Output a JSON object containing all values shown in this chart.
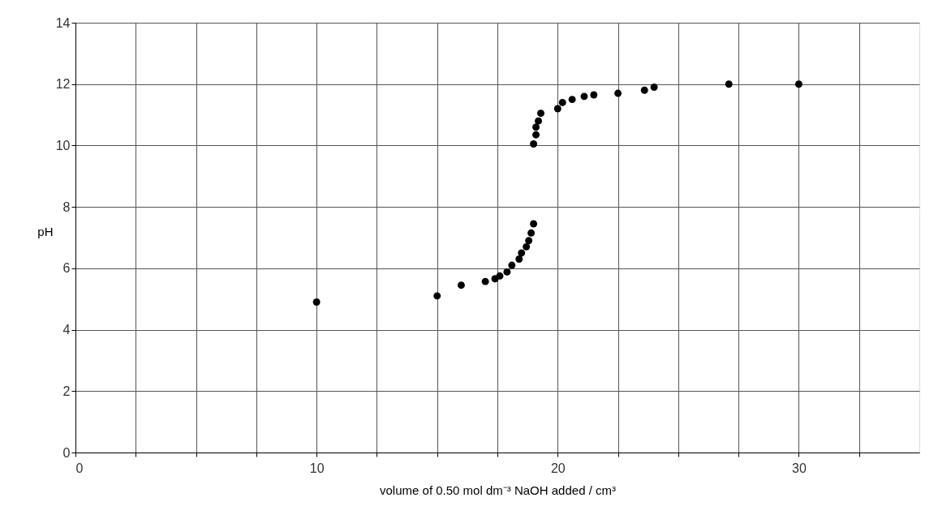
{
  "chart_data": {
    "type": "scatter",
    "xlabel": "volume of 0.50 mol dm⁻³ NaOH added / cm³",
    "ylabel": "pH",
    "x": [
      10,
      15,
      16,
      17.0,
      17.4,
      17.6,
      17.9,
      18.1,
      18.4,
      18.5,
      18.7,
      18.8,
      18.9,
      19.0,
      19.0,
      19.1,
      19.1,
      19.2,
      19.3,
      20.0,
      20.2,
      20.6,
      21.1,
      21.5,
      22.5,
      23.6,
      24.0,
      27.1,
      30.0
    ],
    "series": [
      {
        "color": "#000000",
        "values": [
          4.9,
          5.1,
          5.45,
          5.57,
          5.66,
          5.75,
          5.88,
          6.1,
          6.3,
          6.5,
          6.7,
          6.9,
          7.15,
          7.45,
          10.05,
          10.35,
          10.6,
          10.8,
          11.05,
          11.2,
          11.4,
          11.5,
          11.6,
          11.65,
          11.7,
          11.8,
          11.9,
          12.0,
          12.0
        ]
      }
    ],
    "marker": "circle",
    "xlim": [
      0,
      35
    ],
    "xticks": [
      0,
      {
        "value": 2.5,
        "label": null
      },
      {
        "value": 5,
        "label": null
      },
      {
        "value": 7.5,
        "label": null
      },
      10,
      {
        "value": 12.5,
        "label": null
      },
      {
        "value": 15,
        "label": null
      },
      {
        "value": 17.5,
        "label": null
      },
      20,
      {
        "value": 22.5,
        "label": null
      },
      {
        "value": 25,
        "label": null
      },
      {
        "value": 27.5,
        "label": null
      },
      30,
      {
        "value": 32.5,
        "label": null
      }
    ],
    "ylim": [
      0,
      14
    ],
    "yticks": [
      0,
      2,
      4,
      6,
      8,
      10,
      12,
      14
    ],
    "grid": true
  }
}
